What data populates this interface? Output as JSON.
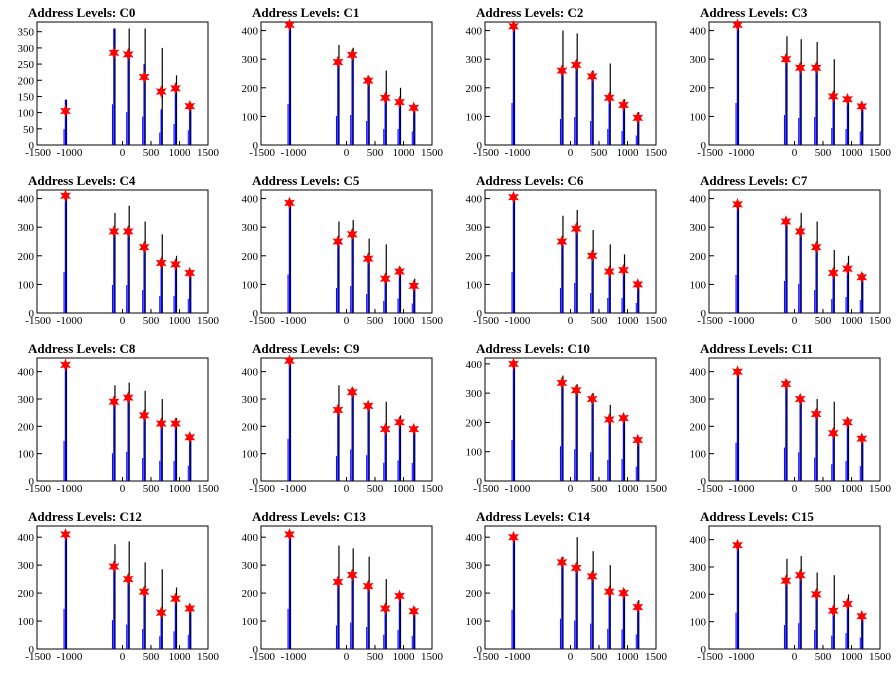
{
  "x_ticks": [
    "-1500",
    "-1000",
    "0",
    "500",
    "1000",
    "1500"
  ],
  "colors": {
    "histogram_black": "#000000",
    "histogram_blue": "#0000ff",
    "star_fill": "#ff0000"
  },
  "chart_data": [
    {
      "type": "bar",
      "title": "Address Levels: C0",
      "xlim": [
        -1500,
        1500
      ],
      "ylim": [
        0,
        380
      ],
      "yticks": [
        0,
        50,
        100,
        150,
        200,
        250,
        300,
        350
      ],
      "peaks_x": [
        -1000,
        -150,
        100,
        380,
        680,
        930,
        1180
      ],
      "black": [
        140,
        360,
        360,
        360,
        300,
        215,
        130
      ],
      "blue": [
        140,
        360,
        290,
        250,
        110,
        185,
        130
      ],
      "stars": [
        105,
        285,
        280,
        210,
        165,
        175,
        120
      ]
    },
    {
      "type": "bar",
      "title": "Address Levels: C1",
      "xlim": [
        -1500,
        1500
      ],
      "ylim": [
        0,
        430
      ],
      "yticks": [
        0,
        100,
        200,
        300,
        400
      ],
      "peaks_x": [
        -1000,
        -150,
        100,
        380,
        680,
        930,
        1180
      ],
      "black": [
        410,
        350,
        340,
        240,
        260,
        200,
        140
      ],
      "blue": [
        410,
        290,
        300,
        240,
        160,
        160,
        135
      ],
      "stars": [
        420,
        290,
        315,
        225,
        165,
        150,
        130
      ]
    },
    {
      "type": "bar",
      "title": "Address Levels: C2",
      "xlim": [
        -1500,
        1500
      ],
      "ylim": [
        0,
        430
      ],
      "yticks": [
        0,
        100,
        200,
        300,
        400
      ],
      "peaks_x": [
        -1000,
        -150,
        100,
        380,
        680,
        930,
        1180
      ],
      "black": [
        420,
        400,
        390,
        260,
        285,
        160,
        115
      ],
      "blue": [
        420,
        260,
        280,
        240,
        160,
        140,
        95
      ],
      "stars": [
        415,
        260,
        280,
        240,
        165,
        140,
        95
      ]
    },
    {
      "type": "bar",
      "title": "Address Levels: C3",
      "xlim": [
        -1500,
        1500
      ],
      "ylim": [
        0,
        430
      ],
      "yticks": [
        0,
        100,
        200,
        300,
        400
      ],
      "peaks_x": [
        -1000,
        -150,
        100,
        380,
        680,
        930,
        1180
      ],
      "black": [
        420,
        380,
        370,
        360,
        300,
        165,
        140
      ],
      "blue": [
        420,
        300,
        270,
        280,
        170,
        160,
        135
      ],
      "stars": [
        420,
        300,
        270,
        270,
        170,
        160,
        135
      ]
    },
    {
      "type": "bar",
      "title": "Address Levels: C4",
      "xlim": [
        -1500,
        1500
      ],
      "ylim": [
        0,
        430
      ],
      "yticks": [
        0,
        100,
        200,
        300,
        400
      ],
      "peaks_x": [
        -1000,
        -150,
        100,
        380,
        680,
        930,
        1180
      ],
      "black": [
        410,
        350,
        375,
        320,
        275,
        200,
        150
      ],
      "blue": [
        410,
        280,
        280,
        230,
        170,
        170,
        140
      ],
      "stars": [
        410,
        285,
        285,
        230,
        175,
        170,
        140
      ]
    },
    {
      "type": "bar",
      "title": "Address Levels: C5",
      "xlim": [
        -1500,
        1500
      ],
      "ylim": [
        0,
        430
      ],
      "yticks": [
        0,
        100,
        200,
        300,
        400
      ],
      "peaks_x": [
        -1000,
        -150,
        100,
        380,
        680,
        930,
        1180
      ],
      "black": [
        385,
        320,
        325,
        260,
        240,
        160,
        120
      ],
      "blue": [
        385,
        250,
        270,
        190,
        120,
        145,
        95
      ],
      "stars": [
        385,
        250,
        275,
        190,
        120,
        145,
        95
      ]
    },
    {
      "type": "bar",
      "title": "Address Levels: C6",
      "xlim": [
        -1500,
        1500
      ],
      "ylim": [
        0,
        430
      ],
      "yticks": [
        0,
        100,
        200,
        300,
        400
      ],
      "peaks_x": [
        -1000,
        -150,
        100,
        380,
        680,
        930,
        1180
      ],
      "black": [
        410,
        340,
        360,
        290,
        240,
        205,
        110
      ],
      "blue": [
        410,
        250,
        300,
        200,
        150,
        150,
        100
      ],
      "stars": [
        405,
        250,
        295,
        200,
        145,
        150,
        100
      ]
    },
    {
      "type": "bar",
      "title": "Address Levels: C7",
      "xlim": [
        -1500,
        1500
      ],
      "ylim": [
        0,
        430
      ],
      "yticks": [
        0,
        100,
        200,
        300,
        400
      ],
      "peaks_x": [
        -1000,
        -150,
        100,
        380,
        680,
        930,
        1180
      ],
      "black": [
        380,
        330,
        350,
        320,
        220,
        200,
        140
      ],
      "blue": [
        380,
        320,
        290,
        230,
        140,
        160,
        130
      ],
      "stars": [
        380,
        320,
        285,
        230,
        140,
        155,
        125
      ]
    },
    {
      "type": "bar",
      "title": "Address Levels: C8",
      "xlim": [
        -1500,
        1500
      ],
      "ylim": [
        0,
        450
      ],
      "yticks": [
        0,
        100,
        200,
        300,
        400
      ],
      "peaks_x": [
        -1000,
        -150,
        100,
        380,
        680,
        930,
        1180
      ],
      "black": [
        420,
        350,
        360,
        330,
        300,
        230,
        170
      ],
      "blue": [
        420,
        290,
        305,
        240,
        210,
        210,
        160
      ],
      "stars": [
        425,
        290,
        305,
        240,
        210,
        210,
        160
      ]
    },
    {
      "type": "bar",
      "title": "Address Levels: C9",
      "xlim": [
        -1500,
        1500
      ],
      "ylim": [
        0,
        450
      ],
      "yticks": [
        0,
        100,
        200,
        300,
        400
      ],
      "peaks_x": [
        -1000,
        -150,
        100,
        380,
        680,
        930,
        1180
      ],
      "black": [
        440,
        350,
        340,
        280,
        290,
        240,
        190
      ],
      "blue": [
        440,
        260,
        330,
        270,
        190,
        215,
        190
      ],
      "stars": [
        440,
        260,
        325,
        275,
        190,
        215,
        190
      ]
    },
    {
      "type": "bar",
      "title": "Address Levels: C10",
      "xlim": [
        -1500,
        1500
      ],
      "ylim": [
        0,
        420
      ],
      "yticks": [
        0,
        100,
        200,
        300,
        400
      ],
      "peaks_x": [
        -1000,
        -150,
        100,
        380,
        680,
        930,
        1180
      ],
      "black": [
        400,
        360,
        330,
        300,
        260,
        220,
        150
      ],
      "blue": [
        400,
        340,
        310,
        280,
        205,
        215,
        140
      ],
      "stars": [
        400,
        335,
        310,
        280,
        210,
        215,
        140
      ]
    },
    {
      "type": "bar",
      "title": "Address Levels: C11",
      "xlim": [
        -1500,
        1500
      ],
      "ylim": [
        0,
        450
      ],
      "yticks": [
        0,
        100,
        200,
        300,
        400
      ],
      "peaks_x": [
        -1000,
        -150,
        100,
        380,
        680,
        930,
        1180
      ],
      "black": [
        400,
        370,
        310,
        300,
        290,
        230,
        150
      ],
      "blue": [
        400,
        350,
        300,
        245,
        175,
        210,
        155
      ],
      "stars": [
        400,
        355,
        300,
        245,
        175,
        215,
        155
      ]
    },
    {
      "type": "bar",
      "title": "Address Levels: C12",
      "xlim": [
        -1500,
        1500
      ],
      "ylim": [
        0,
        440
      ],
      "yticks": [
        0,
        100,
        200,
        300,
        400
      ],
      "peaks_x": [
        -1000,
        -150,
        100,
        380,
        680,
        930,
        1180
      ],
      "black": [
        410,
        375,
        385,
        310,
        285,
        220,
        150
      ],
      "blue": [
        410,
        295,
        250,
        205,
        130,
        180,
        145
      ],
      "stars": [
        410,
        295,
        250,
        205,
        130,
        180,
        145
      ]
    },
    {
      "type": "bar",
      "title": "Address Levels: C13",
      "xlim": [
        -1500,
        1500
      ],
      "ylim": [
        0,
        440
      ],
      "yticks": [
        0,
        100,
        200,
        300,
        400
      ],
      "peaks_x": [
        -1000,
        -150,
        100,
        380,
        680,
        930,
        1180
      ],
      "black": [
        410,
        370,
        360,
        330,
        250,
        200,
        150
      ],
      "blue": [
        410,
        240,
        270,
        225,
        145,
        195,
        135
      ],
      "stars": [
        410,
        240,
        265,
        225,
        145,
        190,
        135
      ]
    },
    {
      "type": "bar",
      "title": "Address Levels: C14",
      "xlim": [
        -1500,
        1500
      ],
      "ylim": [
        0,
        440
      ],
      "yticks": [
        0,
        100,
        200,
        300,
        400
      ],
      "peaks_x": [
        -1000,
        -150,
        100,
        380,
        680,
        930,
        1180
      ],
      "black": [
        400,
        330,
        400,
        350,
        300,
        215,
        175
      ],
      "blue": [
        400,
        310,
        290,
        260,
        205,
        200,
        150
      ],
      "stars": [
        400,
        310,
        290,
        260,
        205,
        200,
        150
      ]
    },
    {
      "type": "bar",
      "title": "Address Levels: C15",
      "xlim": [
        -1500,
        1500
      ],
      "ylim": [
        0,
        450
      ],
      "yticks": [
        0,
        100,
        200,
        300,
        400
      ],
      "peaks_x": [
        -1000,
        -150,
        100,
        380,
        680,
        930,
        1180
      ],
      "black": [
        380,
        330,
        340,
        280,
        270,
        200,
        120
      ],
      "blue": [
        380,
        250,
        270,
        200,
        140,
        165,
        120
      ],
      "stars": [
        380,
        250,
        270,
        200,
        140,
        165,
        120
      ]
    }
  ]
}
